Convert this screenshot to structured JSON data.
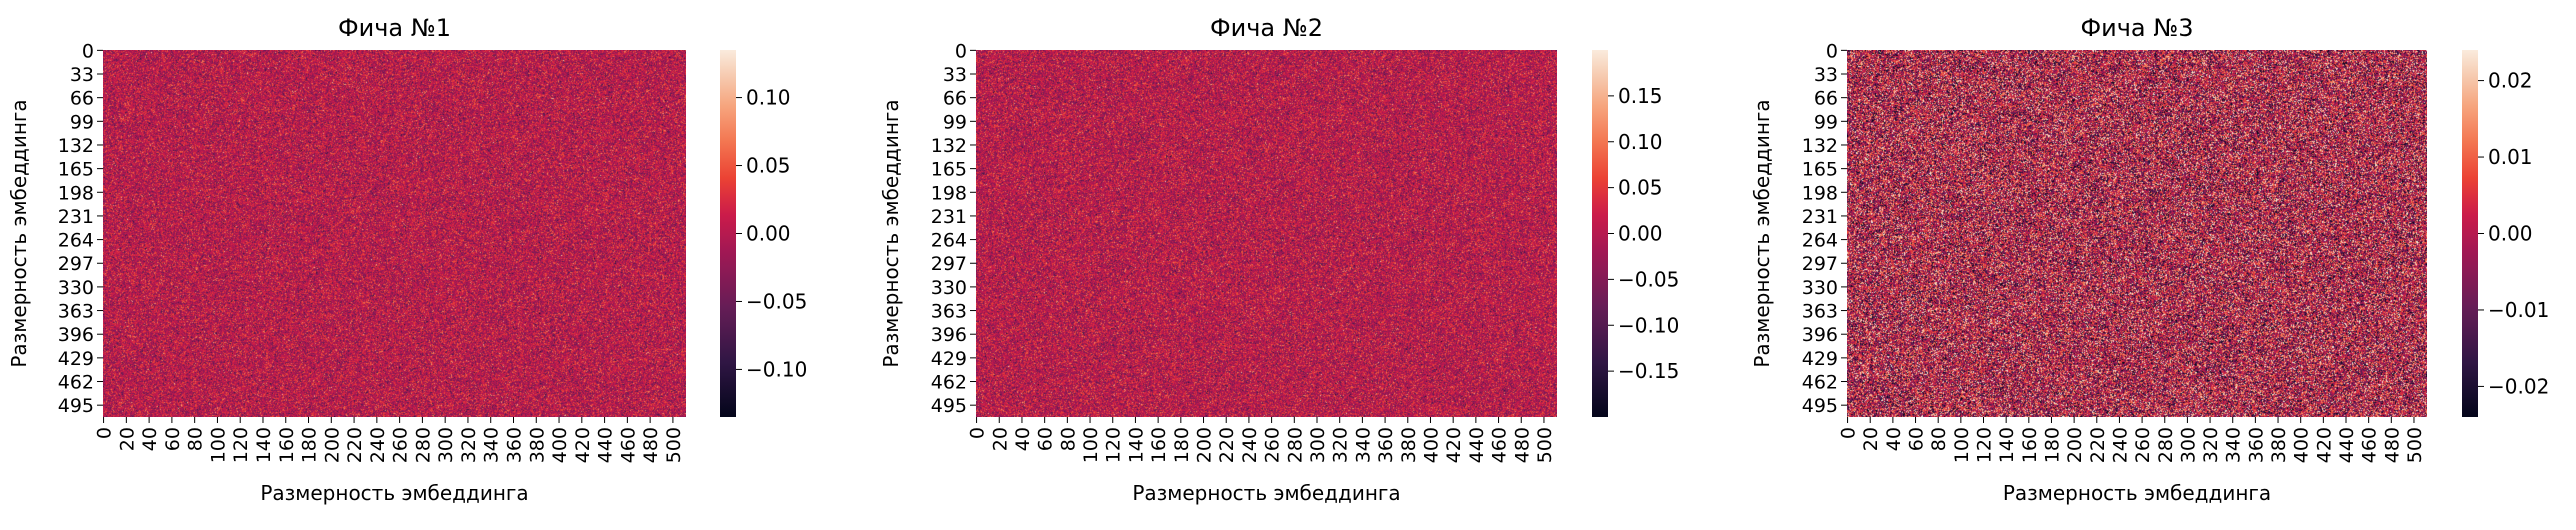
{
  "chart_data": [
    {
      "type": "heatmap",
      "title": "Фича №1",
      "xlabel": "",
      "xlabel_text": "Размерность эмбеддинга",
      "ylabel": "Размерность эмбеддинга",
      "rows": 512,
      "cols": 512,
      "x_tick_labels": [
        "0",
        "20",
        "40",
        "60",
        "80",
        "100",
        "120",
        "140",
        "160",
        "180",
        "200",
        "220",
        "240",
        "260",
        "280",
        "300",
        "320",
        "340",
        "360",
        "380",
        "400",
        "420",
        "440",
        "460",
        "480",
        "500"
      ],
      "y_tick_labels": [
        "0",
        "33",
        "66",
        "99",
        "132",
        "165",
        "198",
        "231",
        "264",
        "297",
        "330",
        "363",
        "396",
        "429",
        "462",
        "495"
      ],
      "value_range": [
        -0.135,
        0.135
      ],
      "colorbar_ticks": [
        "0.10",
        "0.05",
        "0.00",
        "−0.05",
        "−0.10"
      ],
      "colorbar_tick_values": [
        0.1,
        0.05,
        0.0,
        -0.05,
        -0.1
      ],
      "value_std": 0.03,
      "colormap": "rocket"
    },
    {
      "type": "heatmap",
      "title": "Фича №2",
      "xlabel": "",
      "xlabel_text": "Размерность эмбеддинга",
      "ylabel": "Размерность эмбеддинга",
      "rows": 512,
      "cols": 512,
      "x_tick_labels": [
        "0",
        "20",
        "40",
        "60",
        "80",
        "100",
        "120",
        "140",
        "160",
        "180",
        "200",
        "220",
        "240",
        "260",
        "280",
        "300",
        "320",
        "340",
        "360",
        "380",
        "400",
        "420",
        "440",
        "460",
        "480",
        "500"
      ],
      "y_tick_labels": [
        "0",
        "33",
        "66",
        "99",
        "132",
        "165",
        "198",
        "231",
        "264",
        "297",
        "330",
        "363",
        "396",
        "429",
        "462",
        "495"
      ],
      "value_range": [
        -0.2,
        0.2
      ],
      "colorbar_ticks": [
        "0.15",
        "0.10",
        "0.05",
        "0.00",
        "−0.05",
        "−0.10",
        "−0.15"
      ],
      "colorbar_tick_values": [
        0.15,
        0.1,
        0.05,
        0.0,
        -0.05,
        -0.1,
        -0.15
      ],
      "value_std": 0.045,
      "colormap": "rocket"
    },
    {
      "type": "heatmap",
      "title": "Фича №3",
      "xlabel": "",
      "xlabel_text": "Размерность эмбеддинга",
      "ylabel": "Размерность эмбеддинга",
      "rows": 512,
      "cols": 512,
      "x_tick_labels": [
        "0",
        "20",
        "40",
        "60",
        "80",
        "100",
        "120",
        "140",
        "160",
        "180",
        "200",
        "220",
        "240",
        "260",
        "280",
        "300",
        "320",
        "340",
        "360",
        "380",
        "400",
        "420",
        "440",
        "460",
        "480",
        "500"
      ],
      "y_tick_labels": [
        "0",
        "33",
        "66",
        "99",
        "132",
        "165",
        "198",
        "231",
        "264",
        "297",
        "330",
        "363",
        "396",
        "429",
        "462",
        "495"
      ],
      "value_range": [
        -0.024,
        0.024
      ],
      "colorbar_ticks": [
        "0.02",
        "0.01",
        "0.00",
        "−0.01",
        "−0.02"
      ],
      "colorbar_tick_values": [
        0.02,
        0.01,
        0.0,
        -0.01,
        -0.02
      ],
      "value_std": 0.013,
      "colormap": "rocket"
    }
  ]
}
